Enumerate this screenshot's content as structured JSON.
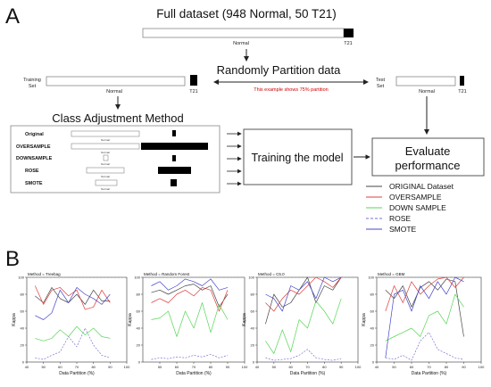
{
  "panel_a": {
    "letter": "A",
    "full_dataset": {
      "title": "Full dataset (948 Normal, 50 T21)",
      "normal": "Normal",
      "t21": "T21"
    },
    "partition": {
      "title": "Randomly Partition data",
      "note": "This example shows 75% partition",
      "note_color": "#d00000"
    },
    "training": {
      "label_line1": "Training",
      "label_line2": "Set",
      "normal": "Normal",
      "t21": "T21"
    },
    "test": {
      "label_line1": "Test",
      "label_line2": "Set",
      "normal": "Normal",
      "t21": "T21"
    },
    "class_adjustment": {
      "title": "Class Adjustment Method",
      "methods": [
        {
          "name": "Original",
          "normal": "Normal"
        },
        {
          "name": "OVERSAMPLE",
          "normal": "Normal"
        },
        {
          "name": "DOWNSAMPLE",
          "normal": "Normal"
        },
        {
          "name": "ROSE",
          "normal": "Normal"
        },
        {
          "name": "SMOTE",
          "normal": "Normal"
        }
      ]
    },
    "training_model": "Training the model",
    "evaluate": {
      "line1": "Evaluate",
      "line2": "performance"
    },
    "legend": [
      {
        "label": "ORIGINAL Dataset",
        "color": "#444444",
        "dash": false
      },
      {
        "label": "OVERSAMPLE",
        "color": "#e03c3c",
        "dash": false
      },
      {
        "label": "DOWN SAMPLE",
        "color": "#55d655",
        "dash": false
      },
      {
        "label": "ROSE",
        "color": "#7b6fd0",
        "dash": true
      },
      {
        "label": "SMOTE",
        "color": "#4545c8",
        "dash": false
      }
    ]
  },
  "panel_b": {
    "letter": "B",
    "ylabel": "Kappa",
    "xlabel": "Data Partition (%)"
  },
  "chart_data": [
    {
      "type": "line",
      "title": "Method = Treebag",
      "xlabel": "Data Partition (%)",
      "ylabel": "Kappa",
      "xlim": [
        40,
        100
      ],
      "ylim": [
        0,
        100
      ],
      "xticks": [
        40,
        50,
        60,
        70,
        80,
        90,
        100
      ],
      "yticks": [
        0,
        20,
        40,
        60,
        80,
        100
      ],
      "x": [
        45,
        50,
        55,
        60,
        65,
        70,
        75,
        80,
        85,
        90
      ],
      "series": [
        {
          "color": "#444444",
          "dash": false,
          "values": [
            78,
            70,
            88,
            75,
            70,
            80,
            68,
            85,
            72,
            72
          ]
        },
        {
          "color": "#e03c3c",
          "dash": false,
          "values": [
            90,
            68,
            85,
            88,
            78,
            85,
            62,
            65,
            85,
            70
          ]
        },
        {
          "color": "#55d655",
          "dash": false,
          "values": [
            28,
            25,
            28,
            38,
            30,
            42,
            32,
            40,
            30,
            28
          ]
        },
        {
          "color": "#7b6fd0",
          "dash": true,
          "values": [
            5,
            3,
            8,
            12,
            30,
            18,
            40,
            20,
            8,
            5
          ]
        },
        {
          "color": "#4545c8",
          "dash": false,
          "values": [
            55,
            50,
            58,
            85,
            70,
            88,
            80,
            75,
            68,
            80
          ]
        }
      ]
    },
    {
      "type": "line",
      "title": "Method = Random Forest",
      "xlabel": "Data Partition (%)",
      "ylabel": "Kappa",
      "xlim": [
        40,
        100
      ],
      "ylim": [
        0,
        100
      ],
      "xticks": [
        50,
        60,
        70,
        80,
        90,
        100
      ],
      "yticks": [
        0,
        20,
        40,
        60,
        80,
        100
      ],
      "x": [
        45,
        50,
        55,
        60,
        65,
        70,
        75,
        80,
        85,
        90
      ],
      "series": [
        {
          "color": "#444444",
          "dash": false,
          "values": [
            82,
            85,
            80,
            85,
            90,
            92,
            85,
            90,
            65,
            80
          ]
        },
        {
          "color": "#e03c3c",
          "dash": false,
          "values": [
            70,
            75,
            70,
            80,
            85,
            78,
            88,
            85,
            60,
            85
          ]
        },
        {
          "color": "#55d655",
          "dash": false,
          "values": [
            50,
            52,
            60,
            30,
            60,
            40,
            70,
            35,
            68,
            50
          ]
        },
        {
          "color": "#7b6fd0",
          "dash": true,
          "values": [
            3,
            5,
            4,
            6,
            5,
            8,
            6,
            9,
            5,
            8
          ]
        },
        {
          "color": "#4545c8",
          "dash": false,
          "values": [
            90,
            95,
            85,
            90,
            98,
            95,
            90,
            98,
            85,
            88
          ]
        }
      ]
    },
    {
      "type": "line",
      "title": "Method = C5.0",
      "xlabel": "Data Partition (%)",
      "ylabel": "Kappa",
      "xlim": [
        40,
        100
      ],
      "ylim": [
        0,
        100
      ],
      "xticks": [
        40,
        50,
        60,
        70,
        80,
        90,
        100
      ],
      "yticks": [
        0,
        20,
        40,
        60,
        80,
        100
      ],
      "x": [
        45,
        50,
        55,
        60,
        65,
        70,
        75,
        80,
        85,
        90
      ],
      "series": [
        {
          "color": "#444444",
          "dash": false,
          "values": [
            45,
            80,
            65,
            70,
            85,
            100,
            70,
            90,
            85,
            100
          ]
        },
        {
          "color": "#e03c3c",
          "dash": false,
          "values": [
            70,
            60,
            75,
            85,
            80,
            90,
            100,
            95,
            88,
            100
          ]
        },
        {
          "color": "#55d655",
          "dash": false,
          "values": [
            25,
            10,
            38,
            12,
            50,
            40,
            72,
            60,
            45,
            75
          ]
        },
        {
          "color": "#7b6fd0",
          "dash": true,
          "values": [
            5,
            2,
            3,
            4,
            8,
            15,
            5,
            3,
            2,
            4
          ]
        },
        {
          "color": "#4545c8",
          "dash": false,
          "values": [
            80,
            75,
            60,
            90,
            85,
            95,
            75,
            100,
            95,
            100
          ]
        }
      ]
    },
    {
      "type": "line",
      "title": "Method = GBM",
      "xlabel": "Data Partition (%)",
      "ylabel": "Kappa",
      "xlim": [
        40,
        100
      ],
      "ylim": [
        0,
        100
      ],
      "xticks": [
        40,
        50,
        60,
        70,
        80,
        90,
        100
      ],
      "yticks": [
        0,
        20,
        40,
        60,
        80,
        100
      ],
      "x": [
        45,
        50,
        55,
        60,
        65,
        70,
        75,
        80,
        85,
        90
      ],
      "series": [
        {
          "color": "#444444",
          "dash": false,
          "values": [
            85,
            75,
            90,
            65,
            88,
            95,
            85,
            98,
            95,
            30
          ]
        },
        {
          "color": "#e03c3c",
          "dash": false,
          "values": [
            60,
            90,
            70,
            95,
            80,
            90,
            98,
            100,
            88,
            100
          ]
        },
        {
          "color": "#55d655",
          "dash": false,
          "values": [
            25,
            30,
            35,
            40,
            30,
            55,
            60,
            45,
            80,
            65
          ]
        },
        {
          "color": "#7b6fd0",
          "dash": true,
          "values": [
            5,
            3,
            8,
            2,
            25,
            35,
            15,
            10,
            5,
            3
          ]
        },
        {
          "color": "#4545c8",
          "dash": false,
          "values": [
            5,
            80,
            85,
            60,
            90,
            75,
            95,
            80,
            100,
            95
          ]
        }
      ]
    }
  ]
}
